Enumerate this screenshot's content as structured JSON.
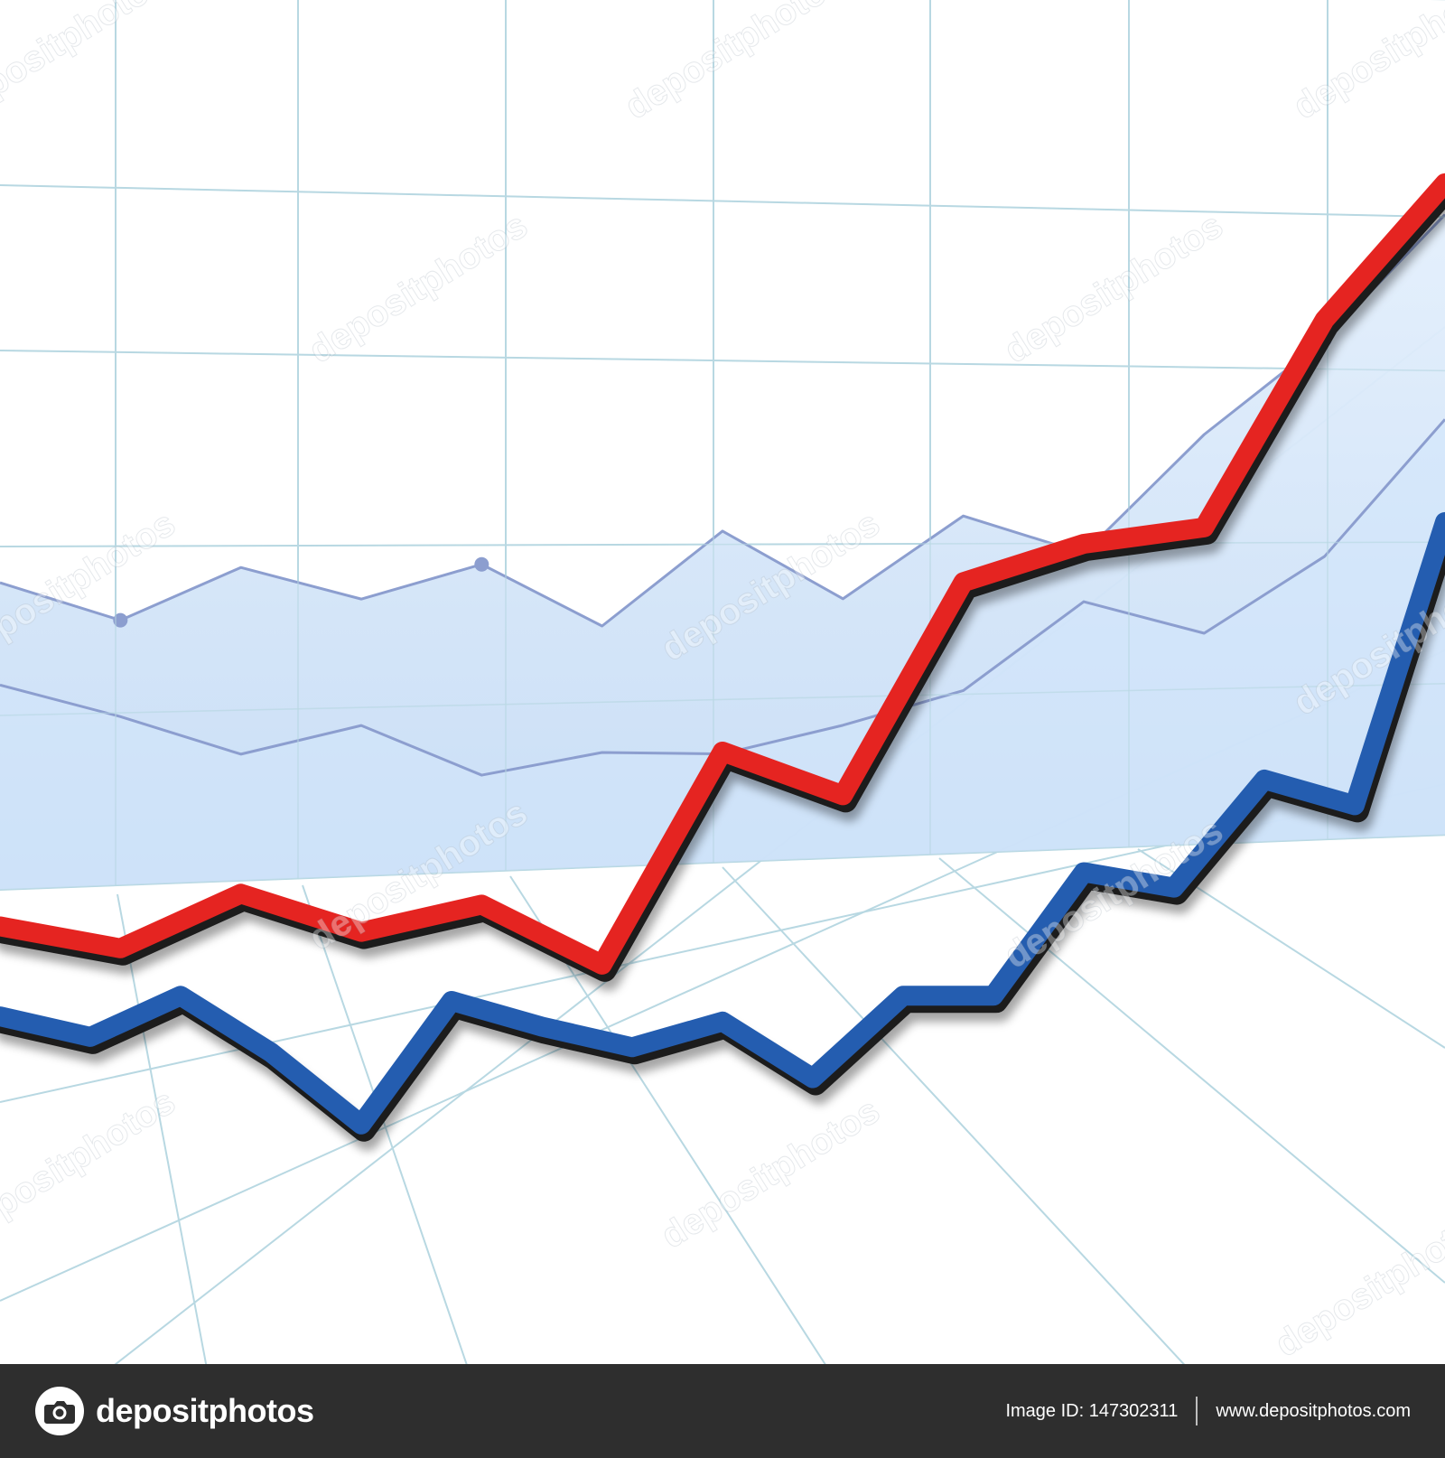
{
  "colors": {
    "accent_red": "#e52421",
    "accent_blue": "#245db0",
    "back_line": "#8c9ecf",
    "back_fill": "#d2e5fb",
    "grid": "#b8d8e2",
    "footer_bg": "#2e2e2e"
  },
  "chart_data": {
    "type": "line",
    "title": "",
    "xlabel": "",
    "ylabel": "",
    "grid": true,
    "legend": "none",
    "series": [
      {
        "color": "#e52421",
        "style": "thick ribbon, foreground",
        "x": [
          0,
          1,
          2,
          3,
          4,
          5,
          6,
          7,
          8,
          9,
          10,
          11,
          12
        ],
        "y": [
          9,
          5,
          15,
          8,
          13,
          2,
          41,
          33,
          72,
          79,
          82,
          120,
          145
        ]
      },
      {
        "color": "#245db0",
        "style": "thick ribbon, foreground",
        "x": [
          0,
          1,
          2,
          3,
          4,
          5,
          6,
          7,
          8,
          9,
          10,
          11,
          12,
          13,
          14,
          15,
          16
        ],
        "y": [
          -3,
          -7,
          1,
          -10,
          -24,
          0,
          -5,
          -9,
          -4,
          -15,
          1,
          1,
          25,
          22,
          43,
          38,
          93
        ]
      },
      {
        "color": "#8c9ecf",
        "style": "thin area line, background (upper)",
        "x": [
          0,
          1,
          2,
          3,
          4,
          5,
          6,
          7,
          8,
          9,
          10,
          11,
          12
        ],
        "y": [
          60,
          53,
          61,
          55,
          60,
          49,
          64,
          52,
          65,
          58,
          77,
          92,
          112
        ]
      },
      {
        "color": "#8c9ecf",
        "style": "thin area line, background (lower)",
        "x": [
          0,
          1,
          2,
          3,
          4,
          5,
          6,
          7,
          8,
          9,
          10,
          11,
          12
        ],
        "y": [
          43,
          37,
          30,
          34,
          25,
          28,
          27,
          31,
          36,
          50,
          44,
          56,
          78
        ]
      }
    ]
  },
  "watermark": {
    "text": "depositphotos"
  },
  "footer": {
    "brand": "depositphotos",
    "image_id": "Image ID: 147302311",
    "site": "www.depositphotos.com"
  }
}
